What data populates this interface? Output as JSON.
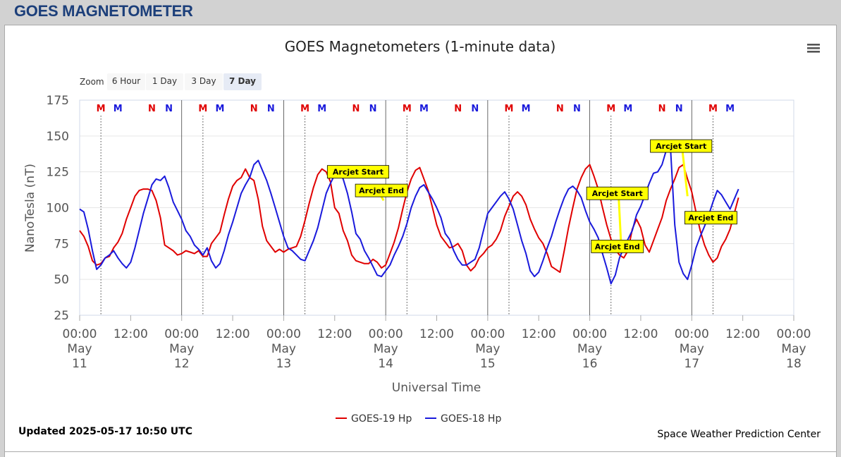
{
  "page": {
    "title": "GOES MAGNETOMETER"
  },
  "zoom": {
    "label": "Zoom",
    "buttons": [
      "6 Hour",
      "1 Day",
      "3 Day",
      "7 Day"
    ],
    "selected": "7 Day"
  },
  "footer": {
    "updated": "Updated 2025-05-17 10:50 UTC",
    "credit": "Space Weather Prediction Center"
  },
  "colors": {
    "goes19": "#e00000",
    "goes18": "#1a1adc",
    "arcjet": "#ffff00",
    "marker_m_red": "#e00000",
    "marker_m_blue": "#1a1adc"
  },
  "chart_data": {
    "type": "line",
    "title": "GOES Magnetometers (1-minute data)",
    "xlabel": "Universal Time",
    "ylabel": "NanoTesla (nT)",
    "x_unit": "hours since 2025-05-11 00:00 UTC",
    "xlim": [
      0,
      168
    ],
    "ylim": [
      25,
      175
    ],
    "yticks": [
      25,
      50,
      75,
      100,
      125,
      150,
      175
    ],
    "xticks": [
      {
        "h": 0,
        "lines": [
          "00:00",
          "May",
          "11"
        ]
      },
      {
        "h": 12,
        "lines": [
          "12:00"
        ]
      },
      {
        "h": 24,
        "lines": [
          "00:00",
          "May",
          "12"
        ]
      },
      {
        "h": 36,
        "lines": [
          "12:00"
        ]
      },
      {
        "h": 48,
        "lines": [
          "00:00",
          "May",
          "13"
        ]
      },
      {
        "h": 60,
        "lines": [
          "12:00"
        ]
      },
      {
        "h": 72,
        "lines": [
          "00:00",
          "May",
          "14"
        ]
      },
      {
        "h": 84,
        "lines": [
          "12:00"
        ]
      },
      {
        "h": 96,
        "lines": [
          "00:00",
          "May",
          "15"
        ]
      },
      {
        "h": 108,
        "lines": [
          "12:00"
        ]
      },
      {
        "h": 120,
        "lines": [
          "00:00",
          "May",
          "16"
        ]
      },
      {
        "h": 132,
        "lines": [
          "12:00"
        ]
      },
      {
        "h": 144,
        "lines": [
          "00:00",
          "May",
          "17"
        ]
      },
      {
        "h": 156,
        "lines": [
          "12:00"
        ]
      },
      {
        "h": 168,
        "lines": [
          "00:00",
          "May",
          "18"
        ]
      }
    ],
    "day_lines": [
      24,
      48,
      72,
      96,
      120,
      144
    ],
    "midnight_markers": [
      {
        "h": 5.0,
        "label": "M",
        "color": "#e00000"
      },
      {
        "h": 9.0,
        "label": "M",
        "color": "#1a1adc"
      },
      {
        "h": 17.0,
        "label": "N",
        "color": "#e00000"
      },
      {
        "h": 21.0,
        "label": "N",
        "color": "#1a1adc"
      },
      {
        "h": 29.0,
        "label": "M",
        "color": "#e00000"
      },
      {
        "h": 33.0,
        "label": "M",
        "color": "#1a1adc"
      },
      {
        "h": 41.0,
        "label": "N",
        "color": "#e00000"
      },
      {
        "h": 45.0,
        "label": "N",
        "color": "#1a1adc"
      },
      {
        "h": 53.0,
        "label": "M",
        "color": "#e00000"
      },
      {
        "h": 57.0,
        "label": "M",
        "color": "#1a1adc"
      },
      {
        "h": 65.0,
        "label": "N",
        "color": "#e00000"
      },
      {
        "h": 69.0,
        "label": "N",
        "color": "#1a1adc"
      },
      {
        "h": 77.0,
        "label": "M",
        "color": "#e00000"
      },
      {
        "h": 81.0,
        "label": "M",
        "color": "#1a1adc"
      },
      {
        "h": 89.0,
        "label": "N",
        "color": "#e00000"
      },
      {
        "h": 93.0,
        "label": "N",
        "color": "#1a1adc"
      },
      {
        "h": 101.0,
        "label": "M",
        "color": "#e00000"
      },
      {
        "h": 105.0,
        "label": "M",
        "color": "#1a1adc"
      },
      {
        "h": 113.0,
        "label": "N",
        "color": "#e00000"
      },
      {
        "h": 117.0,
        "label": "N",
        "color": "#1a1adc"
      },
      {
        "h": 125.0,
        "label": "M",
        "color": "#e00000"
      },
      {
        "h": 129.0,
        "label": "M",
        "color": "#1a1adc"
      },
      {
        "h": 137.0,
        "label": "N",
        "color": "#e00000"
      },
      {
        "h": 141.0,
        "label": "N",
        "color": "#1a1adc"
      },
      {
        "h": 149.0,
        "label": "M",
        "color": "#e00000"
      },
      {
        "h": 153.0,
        "label": "M",
        "color": "#1a1adc"
      }
    ],
    "dotted_lines": [
      5.0,
      29.0,
      53.0,
      77.0,
      101.0,
      125.0,
      149.0
    ],
    "annotations": [
      {
        "text": "Arcjet Start",
        "h": 65.5,
        "value": 125
      },
      {
        "text": "Arcjet End",
        "h": 71.0,
        "value": 112
      },
      {
        "text": "Arcjet Start",
        "h": 126.5,
        "value": 110
      },
      {
        "text": "Arcjet End",
        "h": 126.5,
        "value": 73
      },
      {
        "text": "Arcjet Start",
        "h": 141.5,
        "value": 143
      },
      {
        "text": "Arcjet End",
        "h": 148.5,
        "value": 93
      }
    ],
    "series": [
      {
        "name": "GOES-19 Hp",
        "color": "#e00000",
        "x": [
          0,
          1,
          2,
          3,
          4,
          5,
          6,
          7,
          8,
          9,
          10,
          11,
          12,
          13,
          14,
          15,
          16,
          17,
          18,
          19,
          20,
          21,
          22,
          23,
          24,
          25,
          26,
          27,
          28,
          29,
          30,
          31,
          32,
          33,
          34,
          35,
          36,
          37,
          38,
          39,
          40,
          41,
          42,
          43,
          44,
          45,
          46,
          47,
          48,
          49,
          50,
          51,
          52,
          53,
          54,
          55,
          56,
          57,
          58,
          59,
          60,
          61,
          62,
          63,
          64,
          65,
          66,
          67,
          68,
          69,
          70,
          71,
          72,
          73,
          74,
          75,
          76,
          77,
          78,
          79,
          80,
          81,
          82,
          83,
          84,
          85,
          86,
          87,
          88,
          89,
          90,
          91,
          92,
          93,
          94,
          95,
          96,
          97,
          98,
          99,
          100,
          101,
          102,
          103,
          104,
          105,
          106,
          107,
          108,
          109,
          110,
          111,
          112,
          113,
          114,
          115,
          116,
          117,
          118,
          119,
          120,
          121,
          122,
          123,
          124,
          125,
          126,
          127,
          128,
          129,
          130,
          131,
          132,
          133,
          134,
          135,
          136,
          137,
          138,
          139,
          140,
          141,
          142,
          143,
          144,
          145,
          146,
          147,
          148,
          149,
          150,
          151,
          152,
          153,
          154,
          155
        ],
        "y": [
          84,
          80,
          73,
          63,
          60,
          61,
          65,
          66,
          72,
          76,
          82,
          92,
          100,
          108,
          112,
          113,
          113,
          112,
          105,
          93,
          74,
          72,
          70,
          67,
          68,
          70,
          69,
          68,
          70,
          66,
          66,
          75,
          79,
          83,
          95,
          106,
          115,
          119,
          121,
          127,
          121,
          119,
          106,
          87,
          77,
          73,
          69,
          71,
          69,
          71,
          72,
          73,
          80,
          91,
          103,
          114,
          123,
          127,
          125,
          118,
          100,
          96,
          84,
          77,
          67,
          63,
          62,
          61,
          61,
          64,
          62,
          58,
          60,
          68,
          76,
          86,
          99,
          111,
          120,
          126,
          128,
          120,
          112,
          100,
          88,
          80,
          76,
          72,
          73,
          75,
          70,
          60,
          56,
          59,
          65,
          68,
          72,
          74,
          78,
          84,
          94,
          101,
          108,
          111,
          108,
          102,
          92,
          85,
          79,
          75,
          68,
          59,
          57,
          55,
          70,
          86,
          100,
          113,
          121,
          127,
          130,
          122,
          113,
          100,
          88,
          78,
          71,
          67,
          65,
          70,
          85,
          92,
          86,
          74,
          69,
          77,
          85,
          93,
          105,
          113,
          120,
          128,
          130,
          120,
          111,
          97,
          84,
          74,
          67,
          62,
          65,
          73,
          78,
          85,
          96,
          107
        ]
      },
      {
        "name": "GOES-18 Hp",
        "color": "#1a1adc",
        "x": [
          0,
          1,
          2,
          3,
          4,
          5,
          6,
          7,
          8,
          9,
          10,
          11,
          12,
          13,
          14,
          15,
          16,
          17,
          18,
          19,
          20,
          21,
          22,
          23,
          24,
          25,
          26,
          27,
          28,
          29,
          30,
          31,
          32,
          33,
          34,
          35,
          36,
          37,
          38,
          39,
          40,
          41,
          42,
          43,
          44,
          45,
          46,
          47,
          48,
          49,
          50,
          51,
          52,
          53,
          54,
          55,
          56,
          57,
          58,
          59,
          60,
          61,
          62,
          63,
          64,
          65,
          66,
          67,
          68,
          69,
          70,
          71,
          72,
          73,
          74,
          75,
          76,
          77,
          78,
          79,
          80,
          81,
          82,
          83,
          84,
          85,
          86,
          87,
          88,
          89,
          90,
          91,
          92,
          93,
          94,
          95,
          96,
          97,
          98,
          99,
          100,
          101,
          102,
          103,
          104,
          105,
          106,
          107,
          108,
          109,
          110,
          111,
          112,
          113,
          114,
          115,
          116,
          117,
          118,
          119,
          120,
          121,
          122,
          123,
          124,
          125,
          126,
          127,
          128,
          129,
          130,
          131,
          132,
          133,
          134,
          135,
          136,
          137,
          138,
          139,
          140,
          141,
          142,
          143,
          144,
          145,
          146,
          147,
          148,
          149,
          150,
          151,
          152,
          153,
          154,
          155
        ],
        "y": [
          99,
          97,
          85,
          70,
          57,
          60,
          65,
          67,
          70,
          65,
          61,
          58,
          62,
          72,
          84,
          96,
          106,
          116,
          120,
          119,
          122,
          114,
          104,
          98,
          92,
          84,
          80,
          74,
          71,
          67,
          72,
          63,
          58,
          61,
          70,
          81,
          90,
          100,
          110,
          116,
          121,
          130,
          133,
          126,
          119,
          110,
          100,
          90,
          80,
          72,
          70,
          67,
          64,
          63,
          70,
          77,
          86,
          98,
          110,
          117,
          123,
          124,
          120,
          110,
          97,
          82,
          78,
          70,
          65,
          59,
          53,
          52,
          56,
          60,
          67,
          73,
          80,
          89,
          100,
          108,
          114,
          116,
          111,
          106,
          100,
          93,
          82,
          78,
          70,
          64,
          60,
          60,
          62,
          64,
          72,
          84,
          96,
          100,
          104,
          108,
          111,
          106,
          99,
          88,
          77,
          68,
          56,
          52,
          55,
          63,
          72,
          80,
          90,
          99,
          107,
          113,
          115,
          112,
          107,
          98,
          90,
          85,
          79,
          68,
          58,
          47,
          53,
          65,
          72,
          78,
          84,
          95,
          101,
          109,
          117,
          124,
          125,
          130,
          140,
          142,
          88,
          62,
          54,
          50,
          60,
          72,
          80,
          87,
          95,
          104,
          112,
          109,
          104,
          99,
          106,
          113
        ]
      }
    ]
  }
}
